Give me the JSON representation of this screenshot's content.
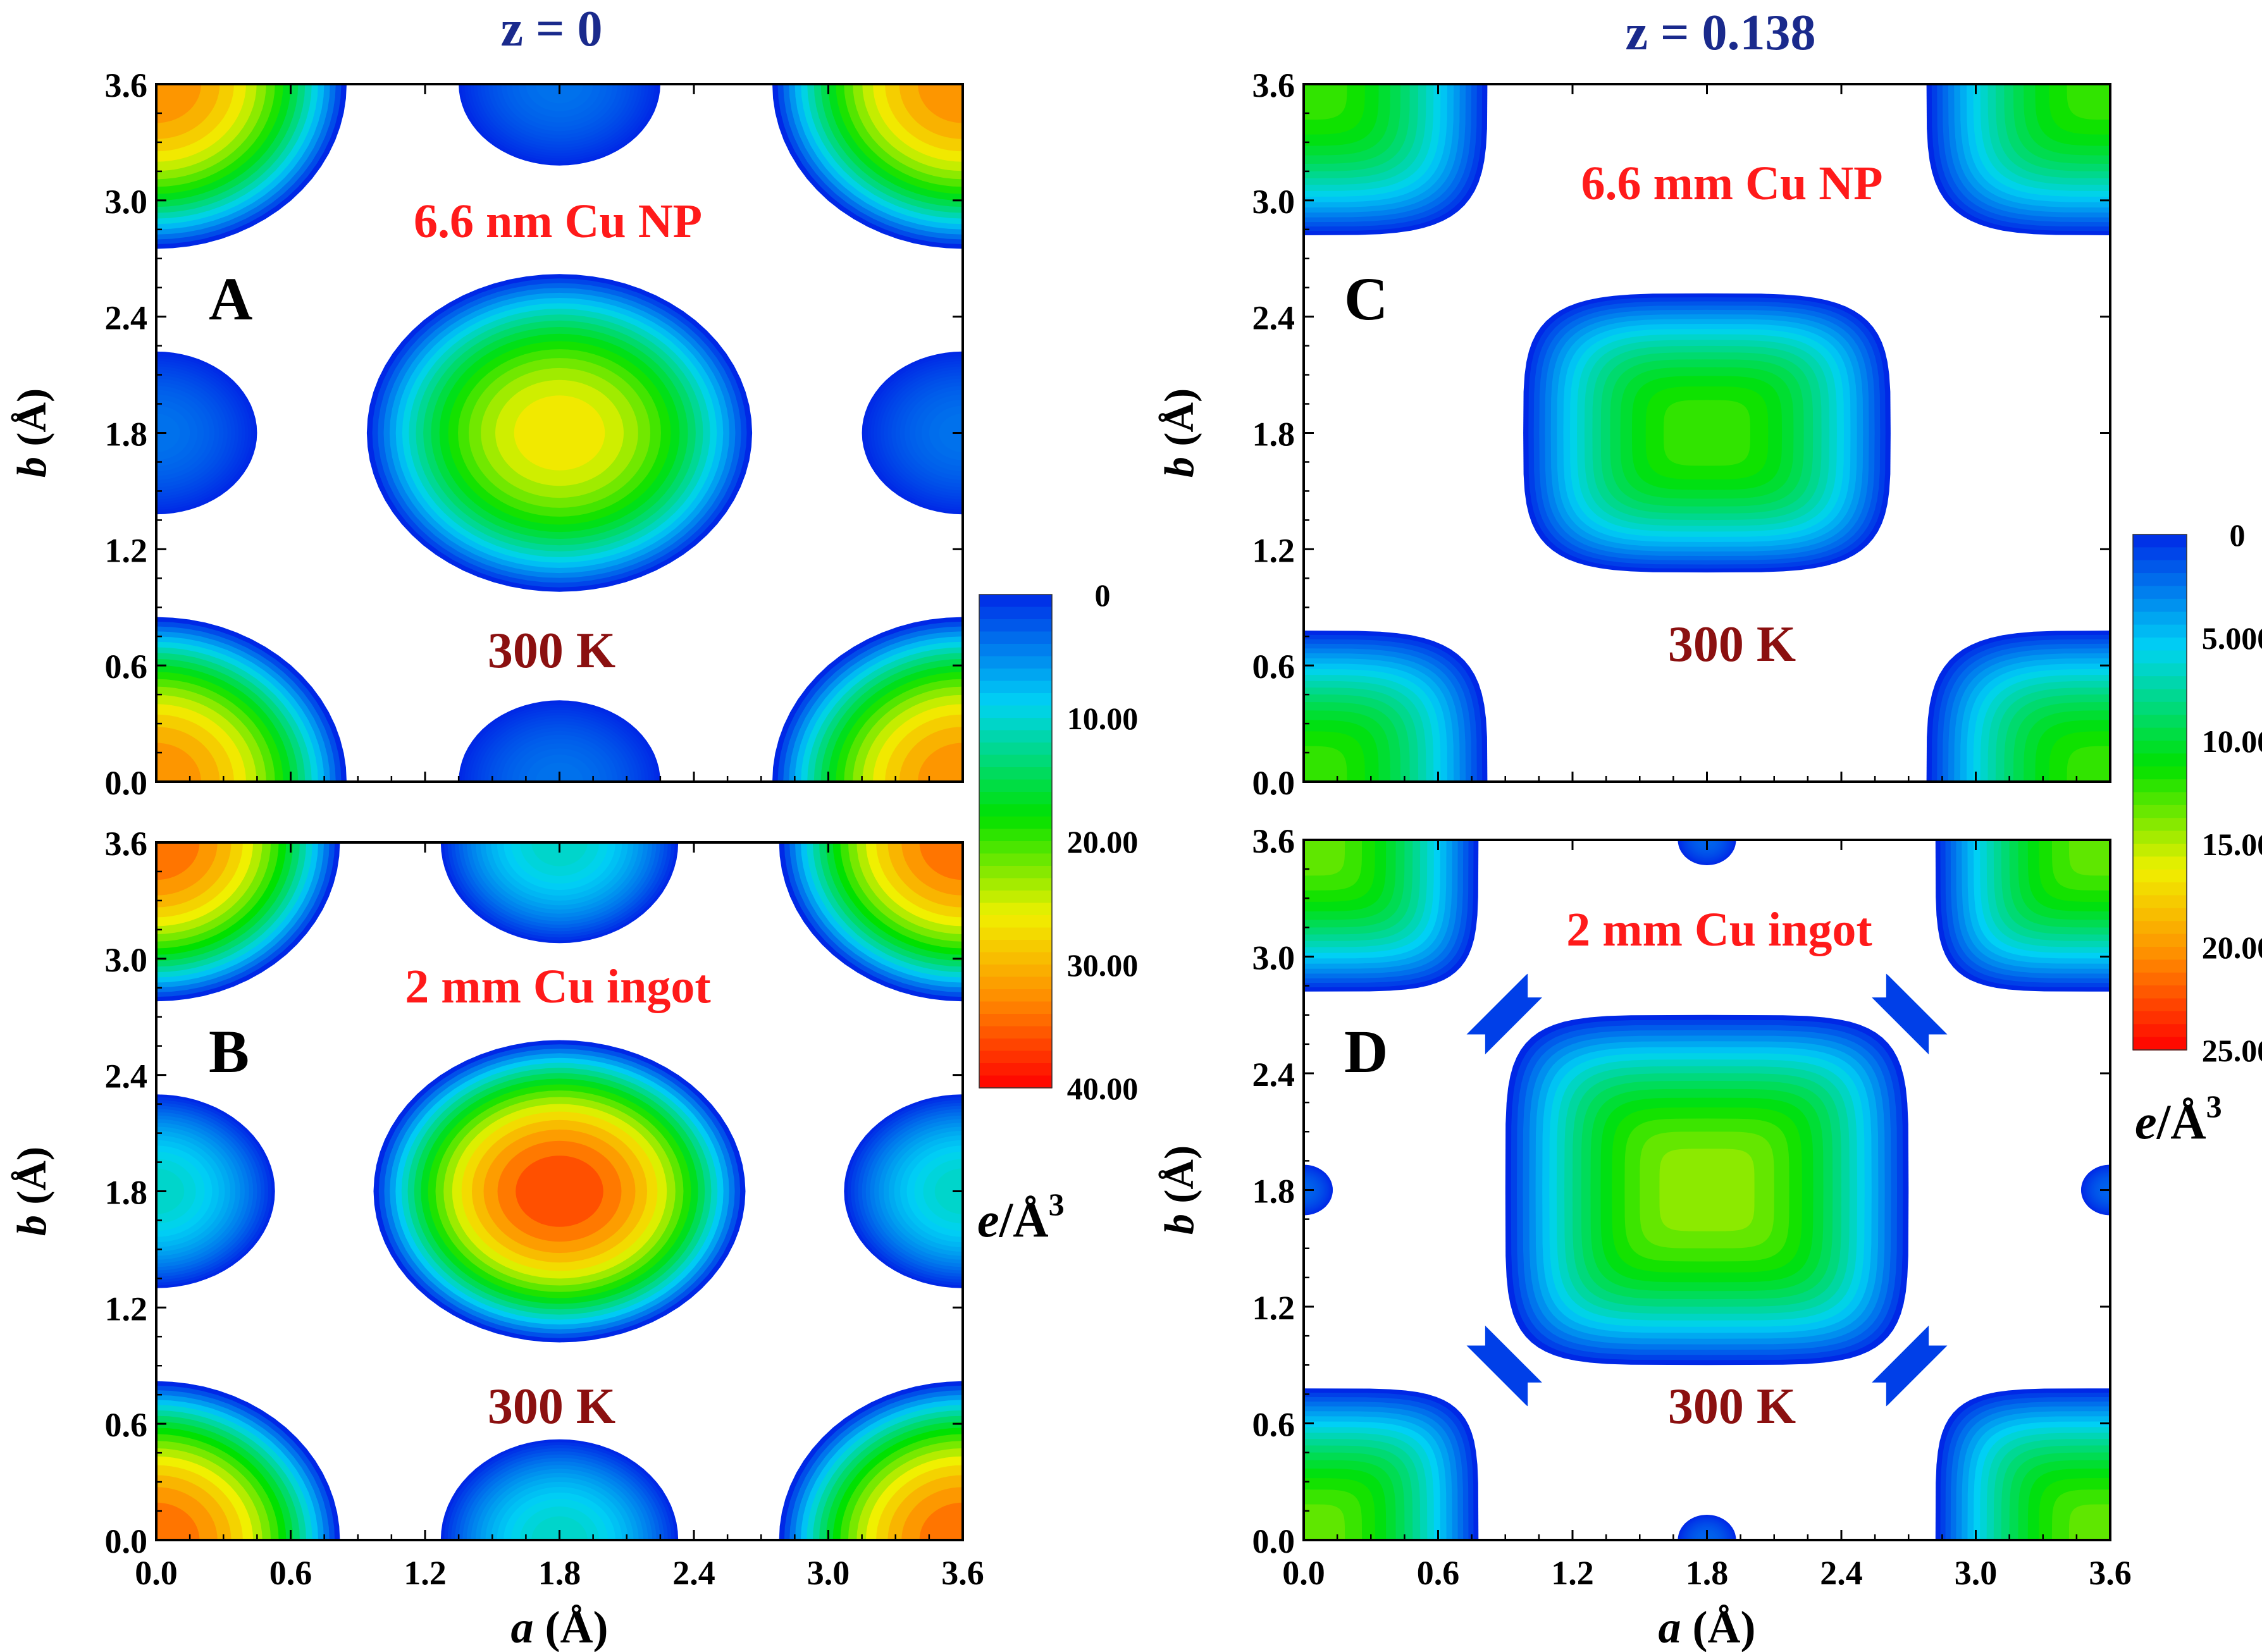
{
  "colors": {
    "header": "#1a2a8c",
    "sample_label": "#ff1a1a",
    "temp_label": "#8b1010",
    "axis": "#000000"
  },
  "chart_data": [
    {
      "id": "A",
      "type": "heatmap",
      "column_title": "z = 0",
      "panel_label": "A",
      "sample": "6.6 nm Cu NP",
      "temperature": "300 K",
      "xlabel_italic": "a",
      "xlabel_unit": " (Å)",
      "ylabel_italic": "b",
      "ylabel_unit": " (Å)",
      "xlim": [
        0,
        3.6
      ],
      "ylim": [
        0,
        3.6
      ],
      "ticks": [
        "0.0",
        "0.6",
        "1.2",
        "1.8",
        "2.4",
        "3.0",
        "3.6"
      ],
      "xticks_visible": false,
      "peaks": [
        {
          "x": 1.8,
          "y": 1.8,
          "rx": 0.86,
          "ry": 0.82,
          "peak": 28,
          "p": 2
        },
        {
          "x": 0,
          "y": 0,
          "rx": 0.85,
          "ry": 0.85,
          "peak": 34,
          "p": 2
        },
        {
          "x": 3.6,
          "y": 0,
          "rx": 0.85,
          "ry": 0.85,
          "peak": 34,
          "p": 2
        },
        {
          "x": 0,
          "y": 3.6,
          "rx": 0.85,
          "ry": 0.85,
          "peak": 34,
          "p": 2
        },
        {
          "x": 3.6,
          "y": 3.6,
          "rx": 0.85,
          "ry": 0.85,
          "peak": 34,
          "p": 2
        },
        {
          "x": 1.8,
          "y": 0,
          "rx": 0.45,
          "ry": 0.42,
          "peak": 4,
          "p": 2
        },
        {
          "x": 1.8,
          "y": 3.6,
          "rx": 0.45,
          "ry": 0.42,
          "peak": 4,
          "p": 2
        },
        {
          "x": 0,
          "y": 1.8,
          "rx": 0.45,
          "ry": 0.42,
          "peak": 4,
          "p": 2
        },
        {
          "x": 3.6,
          "y": 1.8,
          "rx": 0.45,
          "ry": 0.42,
          "peak": 4,
          "p": 2
        }
      ],
      "colorbar_ref": 0
    },
    {
      "id": "B",
      "type": "heatmap",
      "panel_label": "B",
      "sample": "2 mm Cu ingot",
      "temperature": "300 K",
      "xlabel_italic": "a",
      "xlabel_unit": " (Å)",
      "ylabel_italic": "b",
      "ylabel_unit": " (Å)",
      "xlim": [
        0,
        3.6
      ],
      "ylim": [
        0,
        3.6
      ],
      "ticks": [
        "0.0",
        "0.6",
        "1.2",
        "1.8",
        "2.4",
        "3.0",
        "3.6"
      ],
      "xticks_visible": true,
      "peaks": [
        {
          "x": 1.8,
          "y": 1.8,
          "rx": 0.83,
          "ry": 0.78,
          "peak": 38,
          "p": 2
        },
        {
          "x": 0,
          "y": 0,
          "rx": 0.82,
          "ry": 0.82,
          "peak": 36,
          "p": 2
        },
        {
          "x": 3.6,
          "y": 0,
          "rx": 0.82,
          "ry": 0.82,
          "peak": 36,
          "p": 2
        },
        {
          "x": 0,
          "y": 3.6,
          "rx": 0.82,
          "ry": 0.82,
          "peak": 36,
          "p": 2
        },
        {
          "x": 3.6,
          "y": 3.6,
          "rx": 0.82,
          "ry": 0.82,
          "peak": 36,
          "p": 2
        },
        {
          "x": 1.8,
          "y": 0,
          "rx": 0.53,
          "ry": 0.52,
          "peak": 11,
          "p": 2
        },
        {
          "x": 1.8,
          "y": 3.6,
          "rx": 0.53,
          "ry": 0.52,
          "peak": 11,
          "p": 2
        },
        {
          "x": 0,
          "y": 1.8,
          "rx": 0.53,
          "ry": 0.5,
          "peak": 11,
          "p": 2
        },
        {
          "x": 3.6,
          "y": 1.8,
          "rx": 0.53,
          "ry": 0.5,
          "peak": 11,
          "p": 2
        }
      ],
      "colorbar_ref": 0
    },
    {
      "id": "C",
      "type": "heatmap",
      "column_title": "z = 0.138",
      "panel_label": "C",
      "sample": "6.6 mm Cu NP",
      "temperature": "300 K",
      "xlabel_italic": "a",
      "xlabel_unit": " (Å)",
      "ylabel_italic": "b",
      "ylabel_unit": " (Å)",
      "xlim": [
        0,
        3.6
      ],
      "ylim": [
        0,
        3.6
      ],
      "ticks": [
        "0.0",
        "0.6",
        "1.2",
        "1.8",
        "2.4",
        "3.0",
        "3.6"
      ],
      "xticks_visible": false,
      "peaks": [
        {
          "x": 1.8,
          "y": 1.8,
          "rx": 0.82,
          "ry": 0.72,
          "peak": 13,
          "p": 4
        },
        {
          "x": 0,
          "y": 0,
          "rx": 0.82,
          "ry": 0.78,
          "peak": 13,
          "p": 4
        },
        {
          "x": 3.6,
          "y": 0,
          "rx": 0.82,
          "ry": 0.78,
          "peak": 13,
          "p": 4
        },
        {
          "x": 0,
          "y": 3.6,
          "rx": 0.82,
          "ry": 0.78,
          "peak": 13,
          "p": 4
        },
        {
          "x": 3.6,
          "y": 3.6,
          "rx": 0.82,
          "ry": 0.78,
          "peak": 13,
          "p": 4
        }
      ],
      "colorbar_ref": 1
    },
    {
      "id": "D",
      "type": "heatmap",
      "panel_label": "D",
      "sample": "2 mm Cu ingot",
      "temperature": "300 K",
      "xlabel_italic": "a",
      "xlabel_unit": " (Å)",
      "ylabel_italic": "b",
      "ylabel_unit": " (Å)",
      "xlim": [
        0,
        3.6
      ],
      "ylim": [
        0,
        3.6
      ],
      "ticks": [
        "0.0",
        "0.6",
        "1.2",
        "1.8",
        "2.4",
        "3.0",
        "3.6"
      ],
      "xticks_visible": true,
      "peaks": [
        {
          "x": 1.8,
          "y": 1.8,
          "rx": 0.9,
          "ry": 0.9,
          "peak": 15,
          "p": 5
        },
        {
          "x": 0,
          "y": 0,
          "rx": 0.78,
          "ry": 0.78,
          "peak": 14,
          "p": 5
        },
        {
          "x": 3.6,
          "y": 0,
          "rx": 0.78,
          "ry": 0.78,
          "peak": 14,
          "p": 5
        },
        {
          "x": 0,
          "y": 3.6,
          "rx": 0.78,
          "ry": 0.78,
          "peak": 14,
          "p": 5
        },
        {
          "x": 3.6,
          "y": 3.6,
          "rx": 0.78,
          "ry": 0.78,
          "peak": 14,
          "p": 5
        },
        {
          "x": 1.8,
          "y": 0,
          "rx": 0.13,
          "ry": 0.13,
          "peak": 2,
          "p": 2
        },
        {
          "x": 1.8,
          "y": 3.6,
          "rx": 0.13,
          "ry": 0.13,
          "peak": 2,
          "p": 2
        },
        {
          "x": 0,
          "y": 1.8,
          "rx": 0.13,
          "ry": 0.13,
          "peak": 2,
          "p": 2
        },
        {
          "x": 3.6,
          "y": 1.8,
          "rx": 0.13,
          "ry": 0.13,
          "peak": 2,
          "p": 2
        }
      ],
      "bridges": [
        {
          "cx": 0.9,
          "cy": 2.7,
          "dir": "up"
        },
        {
          "cx": 2.7,
          "cy": 2.7,
          "dir": "down"
        },
        {
          "cx": 0.9,
          "cy": 0.9,
          "dir": "down"
        },
        {
          "cx": 2.7,
          "cy": 0.9,
          "dir": "up"
        }
      ],
      "colorbar_ref": 1
    }
  ],
  "colorbars": [
    {
      "min": 0,
      "max": 40,
      "tick_labels": [
        "0",
        "10.00",
        "20.00",
        "30.00",
        "40.00"
      ],
      "tick_values": [
        0,
        10,
        20,
        30,
        40
      ],
      "unit_italic": "e",
      "unit": "/Å",
      "unit_sup": "3",
      "position": "between columns, lower half"
    },
    {
      "min": 0,
      "max": 25,
      "tick_labels": [
        "0",
        "5.000",
        "10.00",
        "15.00",
        "20.00",
        "25.00"
      ],
      "tick_values": [
        0,
        5,
        10,
        15,
        20,
        25
      ],
      "unit_italic": "e",
      "unit": "/Å",
      "unit_sup": "3",
      "position": "right edge, middle"
    }
  ]
}
